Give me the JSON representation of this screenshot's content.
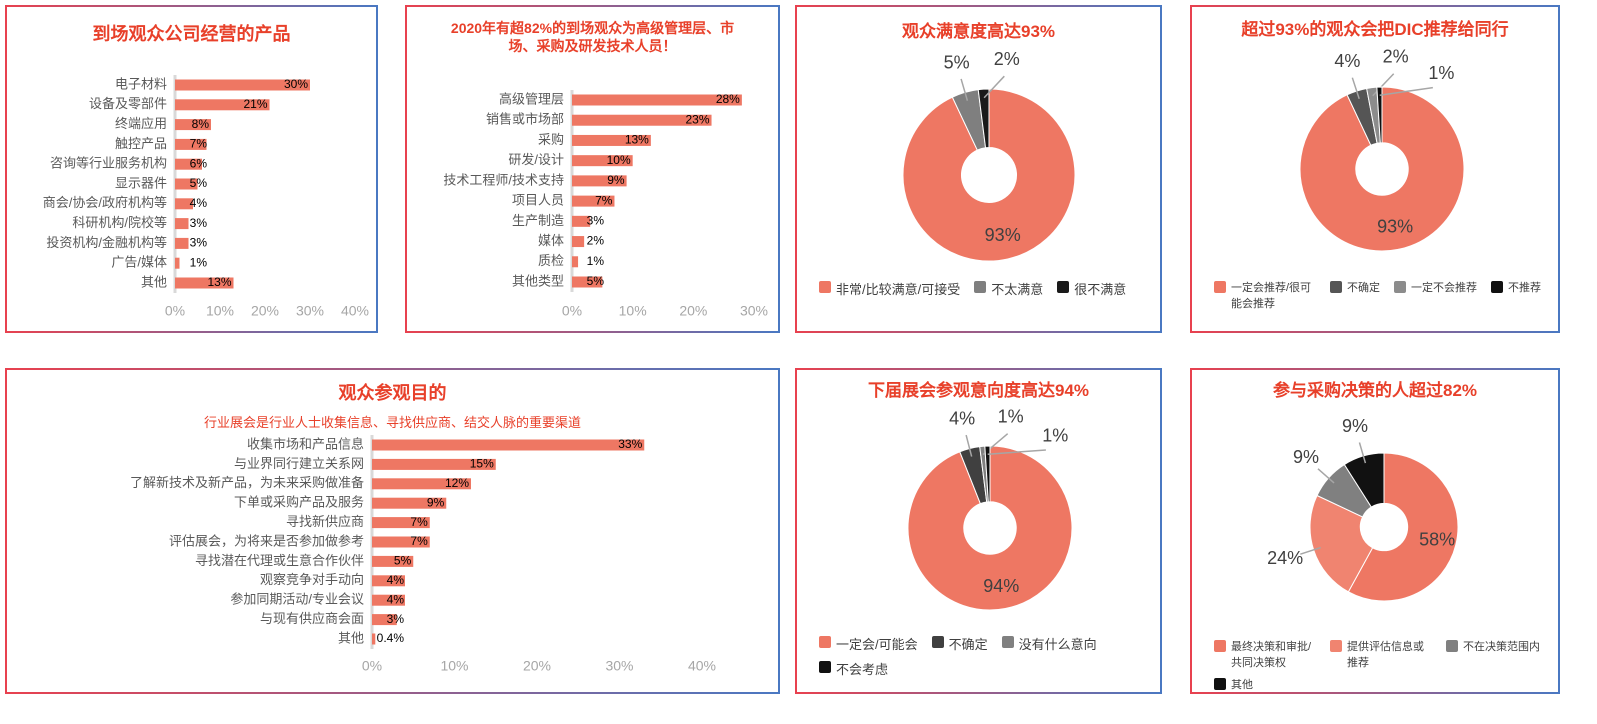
{
  "chart_data": [
    {
      "type": "bar",
      "orientation": "horizontal",
      "title": "到场观众公司经营的产品",
      "categories": [
        "电子材料",
        "设备及零部件",
        "终端应用",
        "触控产品",
        "咨询等行业服务机构",
        "显示器件",
        "商会/协会/政府机构等",
        "科研机构/院校等",
        "投资机构/金融机构等",
        "广告/媒体",
        "其他"
      ],
      "values": [
        30,
        21,
        8,
        7,
        6,
        5,
        4,
        3,
        3,
        1,
        13
      ],
      "value_labels": [
        "30%",
        "21%",
        "8%",
        "7%",
        "6%",
        "5%",
        "4%",
        "3%",
        "3%",
        "1%",
        "13%"
      ],
      "color": "#ee7763",
      "xlim": [
        0,
        40
      ],
      "xticks": [
        {
          "value": 0,
          "label": "0%"
        },
        {
          "value": 10,
          "label": "10%"
        },
        {
          "value": 20,
          "label": "20%"
        },
        {
          "value": 30,
          "label": "30%"
        },
        {
          "value": 40,
          "label": "40%"
        }
      ]
    },
    {
      "type": "bar",
      "orientation": "horizontal",
      "title": "2020年有超82%的到场观众为高级管理层、市场、采购及研发技术人员！",
      "categories": [
        "高级管理层",
        "销售或市场部",
        "采购",
        "研发/设计",
        "技术工程师/技术支持",
        "项目人员",
        "生产制造",
        "媒体",
        "质检",
        "其他类型"
      ],
      "values": [
        28,
        23,
        13,
        10,
        9,
        7,
        3,
        2,
        1,
        5
      ],
      "value_labels": [
        "28%",
        "23%",
        "13%",
        "10%",
        "9%",
        "7%",
        "3%",
        "2%",
        "1%",
        "5%"
      ],
      "color": "#ee7763",
      "xlim": [
        0,
        30
      ],
      "xticks": [
        {
          "value": 0,
          "label": "0%"
        },
        {
          "value": 10,
          "label": "10%"
        },
        {
          "value": 20,
          "label": "20%"
        },
        {
          "value": 30,
          "label": "30%"
        }
      ]
    },
    {
      "type": "pie",
      "title": "观众满意度高达93%",
      "categories": [
        "非常/比较满意/可接受",
        "不太满意",
        "很不满意"
      ],
      "values": [
        93,
        5,
        2
      ],
      "value_labels": [
        "93%",
        "5%",
        "2%"
      ],
      "colors": [
        "#ee7763",
        "#7f7f7f",
        "#1a1a1a"
      ]
    },
    {
      "type": "pie",
      "title": "超过93%的观众会把DIC推荐给同行",
      "categories": [
        "一定会推荐/很可能会推荐",
        "不确定",
        "一定不会推荐",
        "不推荐"
      ],
      "values": [
        93,
        4,
        2,
        1
      ],
      "value_labels": [
        "93%",
        "4%",
        "2%",
        "1%"
      ],
      "colors": [
        "#ee7763",
        "#555555",
        "#8c8c8c",
        "#111111"
      ]
    },
    {
      "type": "bar",
      "orientation": "horizontal",
      "title": "观众参观目的",
      "subtitle": "行业展会是行业人士收集信息、寻找供应商、结交人脉的重要渠道",
      "categories": [
        "收集市场和产品信息",
        "与业界同行建立关系网",
        "了解新技术及新产品，为未来采购做准备",
        "下单或采购产品及服务",
        "寻找新供应商",
        "评估展会，为将来是否参加做参考",
        "寻找潜在代理或生意合作伙伴",
        "观察竞争对手动向",
        "参加同期活动/专业会议",
        "与现有供应商会面",
        "其他"
      ],
      "values": [
        33,
        15,
        12,
        9,
        7,
        7,
        5,
        4,
        4,
        3,
        0.4
      ],
      "value_labels": [
        "33%",
        "15%",
        "12%",
        "9%",
        "7%",
        "7%",
        "5%",
        "4%",
        "4%",
        "3%",
        "0.4%"
      ],
      "color": "#ee7763",
      "xlim": [
        0,
        40
      ],
      "xticks": [
        {
          "value": 0,
          "label": "0%"
        },
        {
          "value": 10,
          "label": "10%"
        },
        {
          "value": 20,
          "label": "20%"
        },
        {
          "value": 30,
          "label": "30%"
        },
        {
          "value": 40,
          "label": "40%"
        }
      ]
    },
    {
      "type": "pie",
      "title": "下届展会参观意向度高达94%",
      "categories": [
        "一定会/可能会",
        "不确定",
        "没有什么意向",
        "不会考虑"
      ],
      "values": [
        94,
        4,
        1,
        1
      ],
      "value_labels": [
        "94%",
        "4%",
        "1%",
        "1%"
      ],
      "colors": [
        "#ee7763",
        "#404040",
        "#808080",
        "#111111"
      ]
    },
    {
      "type": "pie",
      "title": "参与采购决策的人超过82%",
      "categories": [
        "最终决策和审批/共同决策权",
        "提供评估信息或推荐",
        "不在决策范围内",
        "其他"
      ],
      "values": [
        58,
        24,
        9,
        9
      ],
      "value_labels": [
        "58%",
        "24%",
        "9%",
        "9%"
      ],
      "colors": [
        "#ee7763",
        "#f08470",
        "#808080",
        "#111111"
      ]
    }
  ]
}
